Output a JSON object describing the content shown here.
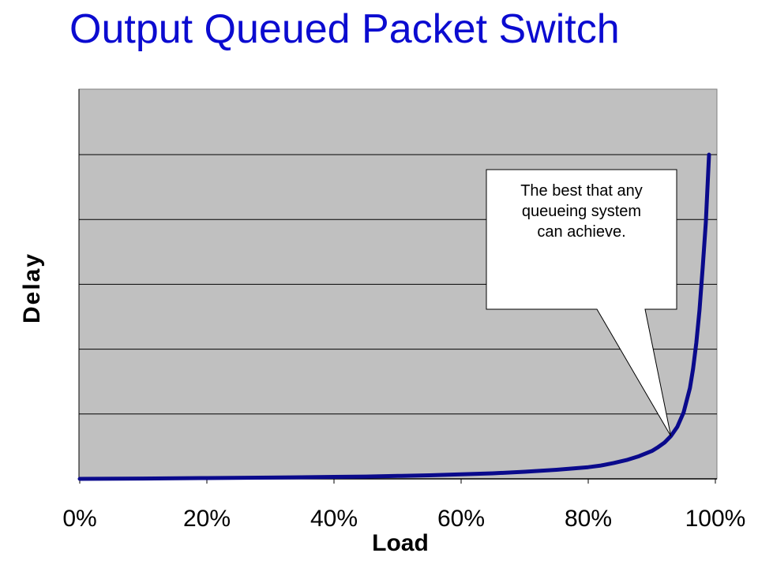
{
  "slide": {
    "title": "Output Queued Packet Switch"
  },
  "chart_data": {
    "type": "line",
    "xlabel": "Load",
    "ylabel": "Delay",
    "xlim": [
      0,
      100
    ],
    "ylim": [
      0,
      100
    ],
    "x_tick_labels": [
      "0%",
      "20%",
      "40%",
      "60%",
      "80%",
      "100%"
    ],
    "x_ticks": [
      0,
      20,
      40,
      60,
      80,
      100
    ],
    "y_gridlines": [
      20,
      40,
      60,
      80,
      100
    ],
    "grid": true,
    "plot_background": "#c0c0c0",
    "series": [
      {
        "color": "#0a0a8c",
        "x": [
          0,
          10,
          20,
          30,
          40,
          45,
          50,
          55,
          60,
          65,
          70,
          75,
          80,
          82,
          84,
          86,
          88,
          90,
          91,
          92,
          93,
          94,
          95,
          96,
          96.5,
          97,
          97.5,
          98,
          98.5,
          99
        ],
        "y": [
          0,
          0.1,
          0.25,
          0.4,
          0.6,
          0.7,
          0.9,
          1.1,
          1.4,
          1.7,
          2.2,
          2.8,
          3.6,
          4.1,
          4.9,
          5.8,
          7.0,
          8.6,
          9.8,
          11.2,
          13.2,
          16.0,
          20.5,
          28.0,
          34.0,
          42.0,
          52.0,
          65.0,
          79.0,
          100
        ]
      }
    ],
    "annotations": [
      {
        "lines": [
          "The best that any",
          "queueing system",
          "can achieve."
        ],
        "target_x": 93
      }
    ]
  }
}
